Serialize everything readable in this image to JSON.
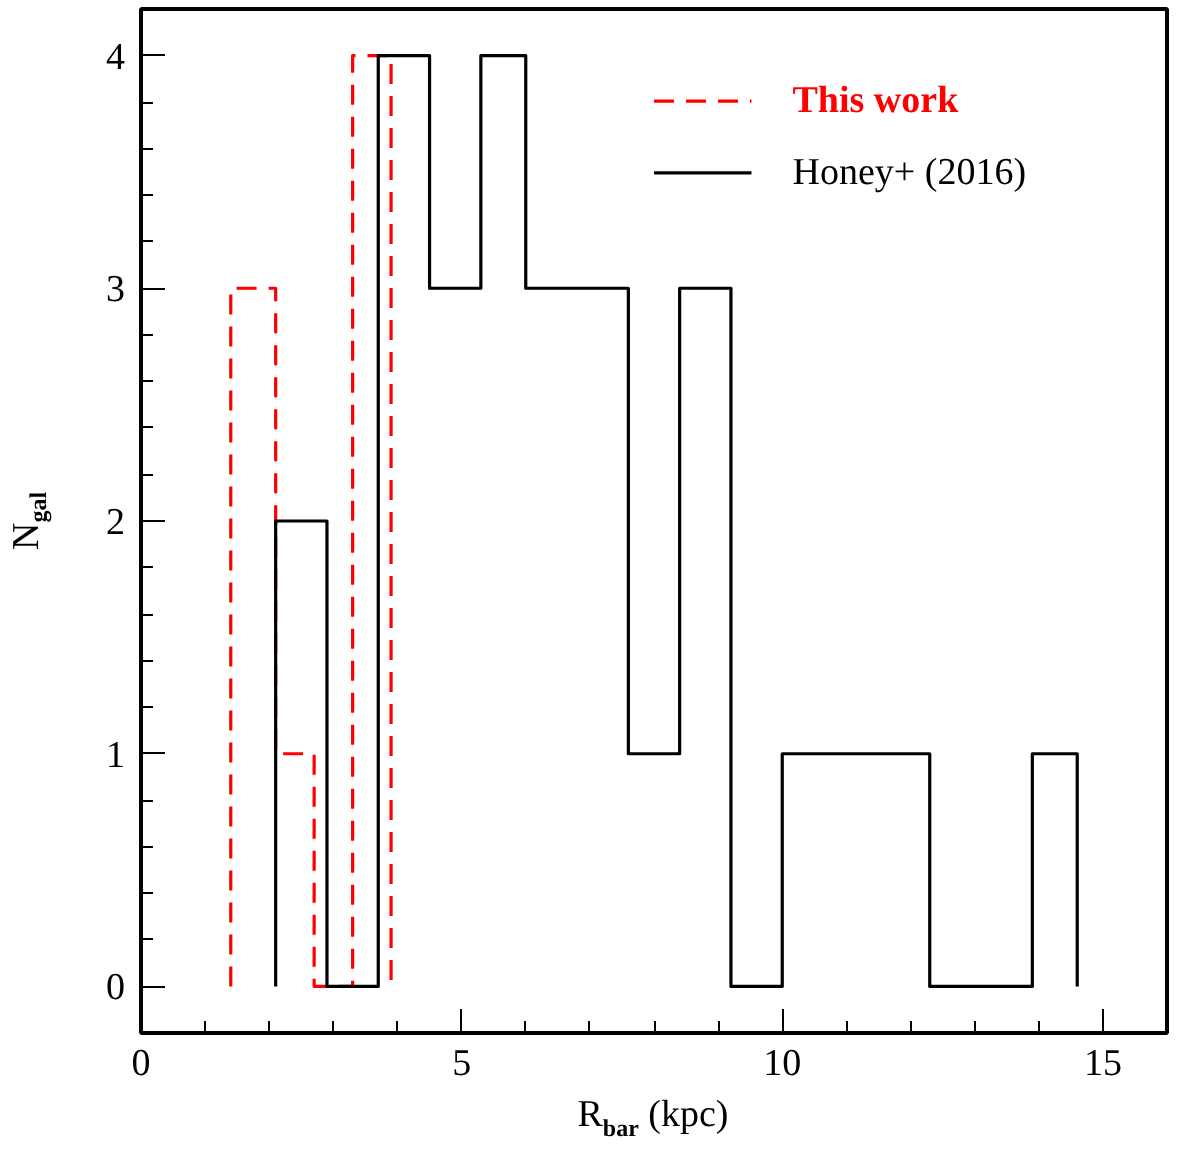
{
  "chart_data": {
    "type": "line",
    "xlabel": "R$_{bar}$ (kpc)",
    "ylabel": "N$_{gal}$",
    "xlim": [
      0,
      16
    ],
    "xticks": [
      0,
      5,
      10,
      15
    ],
    "ylim": [
      -0.2,
      4.2
    ],
    "yticks": [
      0,
      1,
      2,
      3,
      4
    ],
    "legend": "top right",
    "grid": false,
    "marker": "none",
    "series": [
      {
        "name": "This work",
        "color": "#ff0000",
        "line_style": "dashed",
        "x": [
          1.4,
          1.4,
          2.1,
          2.1,
          2.7,
          2.7,
          3.3,
          3.3,
          3.9,
          3.9
        ],
        "values": [
          0,
          3,
          3,
          1,
          1,
          0,
          0,
          4,
          4,
          0
        ]
      },
      {
        "name": "Honey+ (2016)",
        "color": "#000000",
        "line_style": "solid",
        "x": [
          2.1,
          2.1,
          2.9,
          2.9,
          3.7,
          3.7,
          4.5,
          4.5,
          5.3,
          5.3,
          6.0,
          6.0,
          7.6,
          7.6,
          8.4,
          8.4,
          9.2,
          9.2,
          10.0,
          10.0,
          12.3,
          12.3,
          13.9,
          13.9,
          14.6,
          14.6
        ],
        "values": [
          0,
          2,
          2,
          0,
          0,
          4,
          4,
          3,
          3,
          4,
          4,
          3,
          3,
          1,
          1,
          3,
          3,
          0,
          0,
          1,
          1,
          0,
          0,
          1,
          1,
          0
        ]
      }
    ]
  }
}
